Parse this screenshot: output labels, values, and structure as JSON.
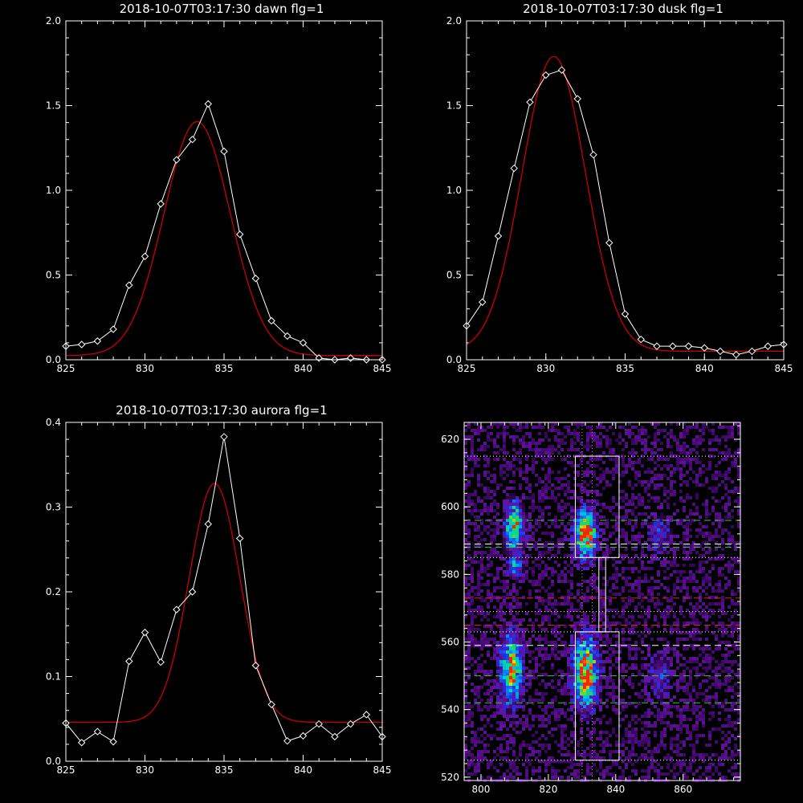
{
  "colors": {
    "background": "#000000",
    "axis": "#ffffff",
    "data_line": "#ffffff",
    "fit_line": "#cc0000",
    "guide_white": "#ffffff",
    "guide_green": "#33cc33",
    "guide_red": "#dd2222",
    "dotted_magenta": "#cc66cc"
  },
  "chart_data": [
    {
      "type": "line",
      "title": "2018-10-07T03:17:30 dawn flg=1",
      "xlim": [
        825,
        845
      ],
      "ylim": [
        0,
        2.0
      ],
      "xticks": [
        825,
        830,
        835,
        840,
        845
      ],
      "yticks": [
        0.0,
        0.5,
        1.0,
        1.5,
        2.0
      ],
      "ytick_labels": [
        "0.0",
        "0.5",
        "1.0",
        "1.5",
        "2.0"
      ],
      "series": [
        {
          "role": "data",
          "x": [
            825,
            826,
            827,
            828,
            829,
            830,
            831,
            832,
            833,
            834,
            835,
            836,
            837,
            838,
            839,
            840,
            841,
            842,
            843,
            844,
            845
          ],
          "y": [
            0.08,
            0.09,
            0.11,
            0.18,
            0.44,
            0.61,
            0.92,
            1.18,
            1.3,
            1.51,
            1.23,
            0.74,
            0.48,
            0.23,
            0.14,
            0.1,
            0.01,
            0.0,
            0.01,
            0.0,
            0.0
          ]
        },
        {
          "role": "fit",
          "gauss": {
            "a": 1.38,
            "mu": 833.3,
            "sigma": 2.1,
            "c": 0.025
          }
        }
      ]
    },
    {
      "type": "line",
      "title": "2018-10-07T03:17:30 dusk flg=1",
      "xlim": [
        825,
        845
      ],
      "ylim": [
        0,
        2.0
      ],
      "xticks": [
        825,
        830,
        835,
        840,
        845
      ],
      "yticks": [
        0.0,
        0.5,
        1.0,
        1.5,
        2.0
      ],
      "ytick_labels": [
        "0.0",
        "0.5",
        "1.0",
        "1.5",
        "2.0"
      ],
      "series": [
        {
          "role": "data",
          "x": [
            825,
            826,
            827,
            828,
            829,
            830,
            831,
            832,
            833,
            834,
            835,
            836,
            837,
            838,
            839,
            840,
            841,
            842,
            843,
            844,
            845
          ],
          "y": [
            0.2,
            0.34,
            0.73,
            1.13,
            1.52,
            1.68,
            1.71,
            1.54,
            1.21,
            0.69,
            0.27,
            0.12,
            0.08,
            0.08,
            0.08,
            0.07,
            0.05,
            0.03,
            0.05,
            0.08,
            0.09
          ]
        },
        {
          "role": "fit",
          "gauss": {
            "a": 1.74,
            "mu": 830.5,
            "sigma": 2.0,
            "c": 0.05
          }
        }
      ]
    },
    {
      "type": "line",
      "title": "2018-10-07T03:17:30 aurora flg=1",
      "xlim": [
        825,
        845
      ],
      "ylim": [
        0,
        0.4
      ],
      "xticks": [
        825,
        830,
        835,
        840,
        845
      ],
      "yticks": [
        0.0,
        0.1,
        0.2,
        0.3,
        0.4
      ],
      "ytick_labels": [
        "0.0",
        "0.1",
        "0.2",
        "0.3",
        "0.4"
      ],
      "series": [
        {
          "role": "data",
          "x": [
            825,
            826,
            827,
            828,
            829,
            830,
            831,
            832,
            833,
            834,
            835,
            836,
            837,
            838,
            839,
            840,
            841,
            842,
            843,
            844,
            845
          ],
          "y": [
            0.045,
            0.022,
            0.035,
            0.023,
            0.118,
            0.152,
            0.117,
            0.179,
            0.2,
            0.28,
            0.383,
            0.263,
            0.113,
            0.067,
            0.024,
            0.03,
            0.044,
            0.029,
            0.044,
            0.055,
            0.029
          ]
        },
        {
          "role": "fit",
          "gauss": {
            "a": 0.282,
            "mu": 834.4,
            "sigma": 1.6,
            "c": 0.046
          }
        }
      ]
    },
    {
      "type": "heatmap",
      "title": "",
      "xlim": [
        795,
        877
      ],
      "ylim": [
        519,
        625
      ],
      "xticks": [
        800,
        820,
        840,
        860
      ],
      "yticks": [
        520,
        540,
        560,
        580,
        600,
        620
      ],
      "ytick_labels": [
        "520",
        "540",
        "560",
        "580",
        "600",
        "620"
      ],
      "blobs": [
        {
          "x": 810,
          "y": 594,
          "sx": 2.0,
          "sy": 5.0,
          "amp": 0.75
        },
        {
          "x": 810,
          "y": 582,
          "sx": 1.5,
          "sy": 2.5,
          "amp": 0.45
        },
        {
          "x": 809,
          "y": 552,
          "sx": 2.2,
          "sy": 7.0,
          "amp": 0.85
        },
        {
          "x": 831,
          "y": 592,
          "sx": 2.2,
          "sy": 5.0,
          "amp": 0.95
        },
        {
          "x": 831,
          "y": 551,
          "sx": 2.5,
          "sy": 7.0,
          "amp": 1.0
        },
        {
          "x": 853,
          "y": 592,
          "sx": 2.5,
          "sy": 4.0,
          "amp": 0.3
        },
        {
          "x": 853,
          "y": 550,
          "sx": 2.5,
          "sy": 5.0,
          "amp": 0.28
        }
      ],
      "boxes": [
        {
          "x0": 828,
          "x1": 841,
          "y0": 585,
          "y1": 615
        },
        {
          "x0": 828,
          "x1": 841,
          "y0": 525,
          "y1": 563
        },
        {
          "x0": 835,
          "x1": 837,
          "y0": 563,
          "y1": 585
        }
      ],
      "hlines_dotted_white": [
        615,
        585,
        569,
        563,
        525
      ],
      "hlines_dashed_white": [
        589,
        559
      ],
      "hlines_dashed_green": [
        596,
        588,
        550,
        542
      ],
      "hlines_dashed_red": [
        573,
        565
      ],
      "vlines_dotted": [
        830,
        833
      ]
    }
  ]
}
